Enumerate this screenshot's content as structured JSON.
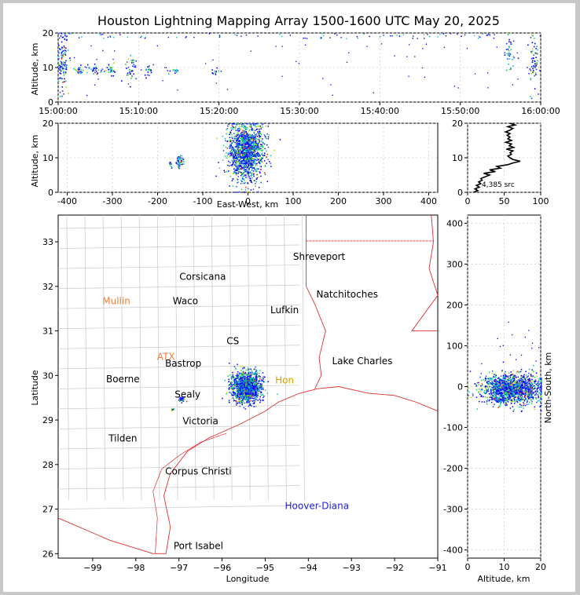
{
  "chart_data": [
    {
      "type": "scatter",
      "name": "altitude-time",
      "title": "Houston Lightning Mapping Array 1500-1600 UTC May 20, 2025",
      "xlabel": "",
      "ylabel": "Altitude, km",
      "xlim": [
        "15:00:00",
        "16:00:00"
      ],
      "ylim": [
        0,
        20
      ],
      "x_ticks": [
        "15:00:00",
        "15:10:00",
        "15:20:00",
        "15:30:00",
        "15:40:00",
        "15:50:00",
        "16:00:00"
      ],
      "y_ticks": [
        0,
        10,
        20
      ],
      "grid": true,
      "clusters": [
        {
          "t_min": 0.5,
          "alt": 12,
          "alt_spread": 7,
          "n": 110
        },
        {
          "t_min": 2.5,
          "alt": 9.5,
          "alt_spread": 1.2,
          "n": 25
        },
        {
          "t_min": 4.5,
          "alt": 9.5,
          "alt_spread": 1.2,
          "n": 30
        },
        {
          "t_min": 6.5,
          "alt": 9.5,
          "alt_spread": 1.2,
          "n": 25
        },
        {
          "t_min": 9.0,
          "alt": 10,
          "alt_spread": 4,
          "n": 35
        },
        {
          "t_min": 11.0,
          "alt": 9.5,
          "alt_spread": 1.5,
          "n": 20
        },
        {
          "t_min": 14.0,
          "alt": 9,
          "alt_spread": 1,
          "n": 12
        },
        {
          "t_min": 19.5,
          "alt": 8.5,
          "alt_spread": 1.5,
          "n": 14
        },
        {
          "t_min": 56.0,
          "alt": 14,
          "alt_spread": 5,
          "n": 35
        },
        {
          "t_min": 59.0,
          "alt": 12,
          "alt_spread": 6,
          "n": 60
        }
      ]
    },
    {
      "type": "scatter",
      "name": "altitude-east-west",
      "xlabel": "East-West, km",
      "ylabel": "Altitude, km",
      "xlim": [
        -420,
        420
      ],
      "ylim": [
        0,
        20
      ],
      "x_ticks": [
        -400,
        -300,
        -200,
        -100,
        0,
        100,
        200,
        300,
        400
      ],
      "y_ticks": [
        0,
        10,
        20
      ],
      "grid": true,
      "clusters": [
        {
          "x": -5,
          "x_spread": 28,
          "alt": 12,
          "alt_spread": 6,
          "n": 1500
        },
        {
          "x": -152,
          "x_spread": 6,
          "alt": 9,
          "alt_spread": 1.5,
          "n": 50
        },
        {
          "x": -172,
          "x_spread": 3,
          "alt": 8.5,
          "alt_spread": 0.6,
          "n": 12
        }
      ]
    },
    {
      "type": "line",
      "name": "altitude-histogram",
      "annotation": "4,385 src",
      "xlim": [
        0,
        100
      ],
      "ylim": [
        0,
        20
      ],
      "x_ticks": [
        0,
        50,
        100
      ],
      "y_ticks": [
        0,
        10,
        20
      ],
      "grid": true,
      "profile": [
        [
          0.0,
          8
        ],
        [
          0.5,
          14
        ],
        [
          1.0,
          10
        ],
        [
          1.5,
          16
        ],
        [
          2.0,
          12
        ],
        [
          2.5,
          18
        ],
        [
          3.0,
          15
        ],
        [
          3.5,
          20
        ],
        [
          4.0,
          18
        ],
        [
          4.5,
          24
        ],
        [
          5.0,
          30
        ],
        [
          5.5,
          22
        ],
        [
          6.0,
          38
        ],
        [
          6.5,
          30
        ],
        [
          7.0,
          45
        ],
        [
          7.5,
          40
        ],
        [
          8.0,
          55
        ],
        [
          8.5,
          62
        ],
        [
          9.0,
          72
        ],
        [
          9.5,
          62
        ],
        [
          10.0,
          58
        ],
        [
          10.5,
          55
        ],
        [
          11.0,
          60
        ],
        [
          11.5,
          58
        ],
        [
          12.0,
          62
        ],
        [
          12.5,
          53
        ],
        [
          13.0,
          63
        ],
        [
          13.5,
          57
        ],
        [
          14.0,
          60
        ],
        [
          14.5,
          52
        ],
        [
          15.0,
          60
        ],
        [
          15.5,
          55
        ],
        [
          16.0,
          58
        ],
        [
          16.5,
          54
        ],
        [
          17.0,
          58
        ],
        [
          17.5,
          52
        ],
        [
          18.0,
          58
        ],
        [
          18.5,
          62
        ],
        [
          19.0,
          55
        ],
        [
          19.5,
          65
        ],
        [
          20.0,
          58
        ]
      ]
    },
    {
      "type": "scatter",
      "name": "plan-view-map",
      "xlabel": "Longitude",
      "ylabel": "Latitude",
      "xlim": [
        -99.8,
        -91
      ],
      "ylim": [
        25.9,
        33.6
      ],
      "x_ticks": [
        -99,
        -98,
        -97,
        -96,
        -95,
        -94,
        -93,
        -92,
        -91
      ],
      "y_ticks": [
        26,
        27,
        28,
        29,
        30,
        31,
        32,
        33
      ],
      "clusters": [
        {
          "lon": -95.45,
          "lat": 29.75,
          "lon_spread": 0.28,
          "lat_spread": 0.28,
          "n": 1500
        },
        {
          "lon": -96.95,
          "lat": 29.48,
          "lon_spread": 0.07,
          "lat_spread": 0.04,
          "n": 40
        },
        {
          "lon": -97.15,
          "lat": 29.25,
          "lon_spread": 0.03,
          "lat_spread": 0.03,
          "n": 10
        }
      ],
      "places": [
        {
          "label": "Shreveport",
          "lon": -93.75,
          "lat": 32.6,
          "color": "#000000"
        },
        {
          "label": "Corsicana",
          "lon": -96.45,
          "lat": 32.15,
          "color": "#000000"
        },
        {
          "label": "Natchitoches",
          "lon": -93.1,
          "lat": 31.75,
          "color": "#000000"
        },
        {
          "label": "Mullin",
          "lon": -98.45,
          "lat": 31.6,
          "color": "#f08040"
        },
        {
          "label": "Waco",
          "lon": -96.85,
          "lat": 31.6,
          "color": "#000000"
        },
        {
          "label": "Lufkin",
          "lon": -94.55,
          "lat": 31.4,
          "color": "#000000"
        },
        {
          "label": "CS",
          "lon": -95.75,
          "lat": 30.7,
          "color": "#000000"
        },
        {
          "label": "ATX",
          "lon": -97.3,
          "lat": 30.35,
          "color": "#f08040"
        },
        {
          "label": "Lake Charles",
          "lon": -92.75,
          "lat": 30.25,
          "color": "#000000"
        },
        {
          "label": "Bastrop",
          "lon": -96.9,
          "lat": 30.2,
          "color": "#000000"
        },
        {
          "label": "Boerne",
          "lon": -98.3,
          "lat": 29.85,
          "color": "#000000"
        },
        {
          "label": "Hon",
          "lon": -94.55,
          "lat": 29.82,
          "color": "#e0a000"
        },
        {
          "label": "Sealy",
          "lon": -96.8,
          "lat": 29.5,
          "color": "#000000"
        },
        {
          "label": "Victoria",
          "lon": -96.5,
          "lat": 28.9,
          "color": "#000000"
        },
        {
          "label": "Tilden",
          "lon": -98.3,
          "lat": 28.52,
          "color": "#000000"
        },
        {
          "label": "Corpus Christi",
          "lon": -96.55,
          "lat": 27.78,
          "color": "#000000"
        },
        {
          "label": "Hoover-Diana",
          "lon": -93.8,
          "lat": 27.0,
          "color": "#2020e0"
        },
        {
          "label": "Port Isabel",
          "lon": -96.55,
          "lat": 26.1,
          "color": "#000000"
        }
      ]
    },
    {
      "type": "scatter",
      "name": "north-south-altitude",
      "xlabel": "Altitude, km",
      "ylabel": "North-South, km",
      "xlim": [
        0,
        20
      ],
      "ylim": [
        -420,
        420
      ],
      "x_ticks": [
        0,
        10,
        20
      ],
      "y_ticks": [
        -400,
        -300,
        -200,
        -100,
        0,
        100,
        200,
        300,
        400
      ],
      "grid": true,
      "clusters": [
        {
          "alt": 12,
          "alt_spread": 6,
          "ns": -5,
          "ns_spread": 25,
          "n": 1500
        },
        {
          "alt": 9,
          "alt_spread": 1.5,
          "ns": -30,
          "ns_spread": 5,
          "n": 40
        }
      ]
    }
  ]
}
